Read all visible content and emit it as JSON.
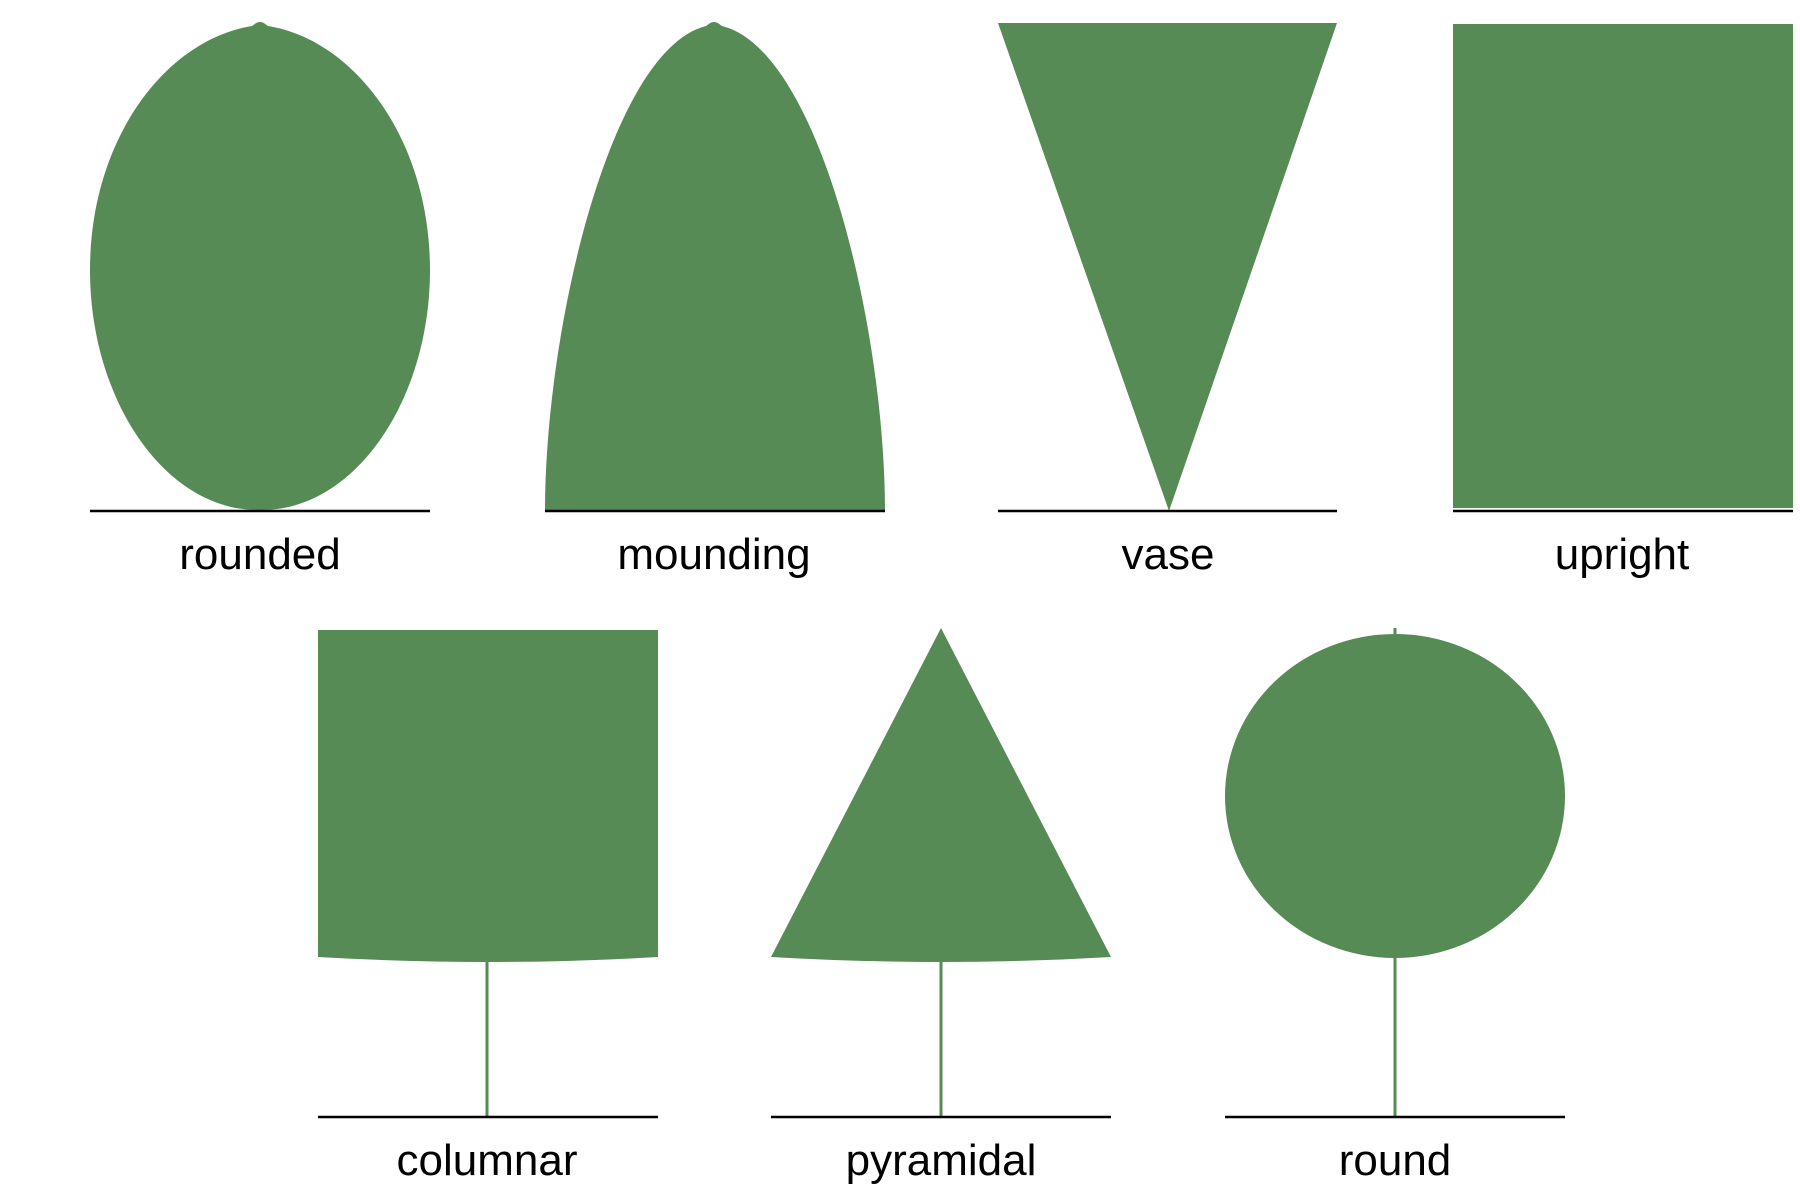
{
  "colors": {
    "foliage": "#568b55",
    "trunk": "#568b55",
    "ground": "#000000",
    "background": "#ffffff",
    "label": "#000000"
  },
  "shapes": [
    {
      "id": "rounded",
      "label": "rounded",
      "form": "ellipse",
      "has_trunk": false
    },
    {
      "id": "mounding",
      "label": "mounding",
      "form": "parabolic-dome",
      "has_trunk": false
    },
    {
      "id": "vase",
      "label": "vase",
      "form": "inverted-triangle",
      "has_trunk": false
    },
    {
      "id": "upright",
      "label": "upright",
      "form": "rectangle",
      "has_trunk": false
    },
    {
      "id": "columnar",
      "label": "columnar",
      "form": "square-on-trunk",
      "has_trunk": true
    },
    {
      "id": "pyramidal",
      "label": "pyramidal",
      "form": "triangle-on-trunk",
      "has_trunk": true
    },
    {
      "id": "round",
      "label": "round",
      "form": "circle-on-trunk",
      "has_trunk": true
    }
  ]
}
